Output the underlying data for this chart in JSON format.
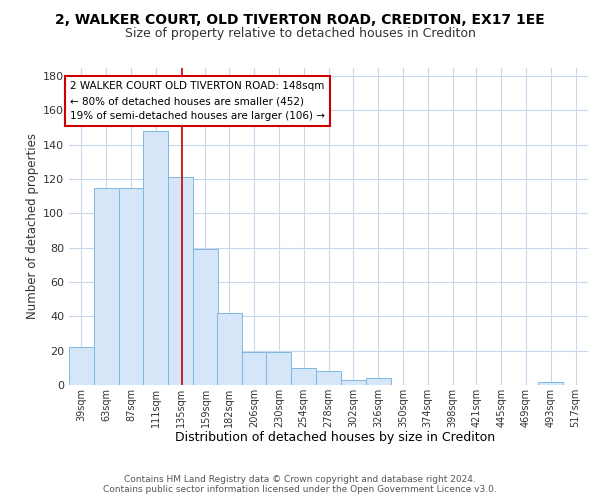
{
  "title1": "2, WALKER COURT, OLD TIVERTON ROAD, CREDITON, EX17 1EE",
  "title2": "Size of property relative to detached houses in Crediton",
  "xlabel": "Distribution of detached houses by size in Crediton",
  "ylabel": "Number of detached properties",
  "bar_edges": [
    39,
    63,
    87,
    111,
    135,
    159,
    182,
    206,
    230,
    254,
    278,
    302,
    326,
    350,
    374,
    398,
    421,
    445,
    469,
    493,
    517
  ],
  "bar_heights": [
    22,
    115,
    115,
    148,
    121,
    79,
    42,
    19,
    19,
    10,
    8,
    3,
    4,
    0,
    0,
    0,
    0,
    0,
    0,
    2,
    0
  ],
  "bar_color": "#d4e6f7",
  "bar_edge_color": "#7fb8e0",
  "grid_color": "#c8d8ea",
  "vline_x": 148,
  "vline_color": "#cc0000",
  "annotation_title": "2 WALKER COURT OLD TIVERTON ROAD: 148sqm",
  "annotation_line2": "← 80% of detached houses are smaller (452)",
  "annotation_line3": "19% of semi-detached houses are larger (106) →",
  "annotation_color": "#cc0000",
  "ylim": [
    0,
    185
  ],
  "yticks": [
    0,
    20,
    40,
    60,
    80,
    100,
    120,
    140,
    160,
    180
  ],
  "tick_labels": [
    "39sqm",
    "63sqm",
    "87sqm",
    "111sqm",
    "135sqm",
    "159sqm",
    "182sqm",
    "206sqm",
    "230sqm",
    "254sqm",
    "278sqm",
    "302sqm",
    "326sqm",
    "350sqm",
    "374sqm",
    "398sqm",
    "421sqm",
    "445sqm",
    "469sqm",
    "493sqm",
    "517sqm"
  ],
  "footer1": "Contains HM Land Registry data © Crown copyright and database right 2024.",
  "footer2": "Contains public sector information licensed under the Open Government Licence v3.0.",
  "bg_color": "#ffffff",
  "fig_width": 6.0,
  "fig_height": 5.0,
  "dpi": 100
}
